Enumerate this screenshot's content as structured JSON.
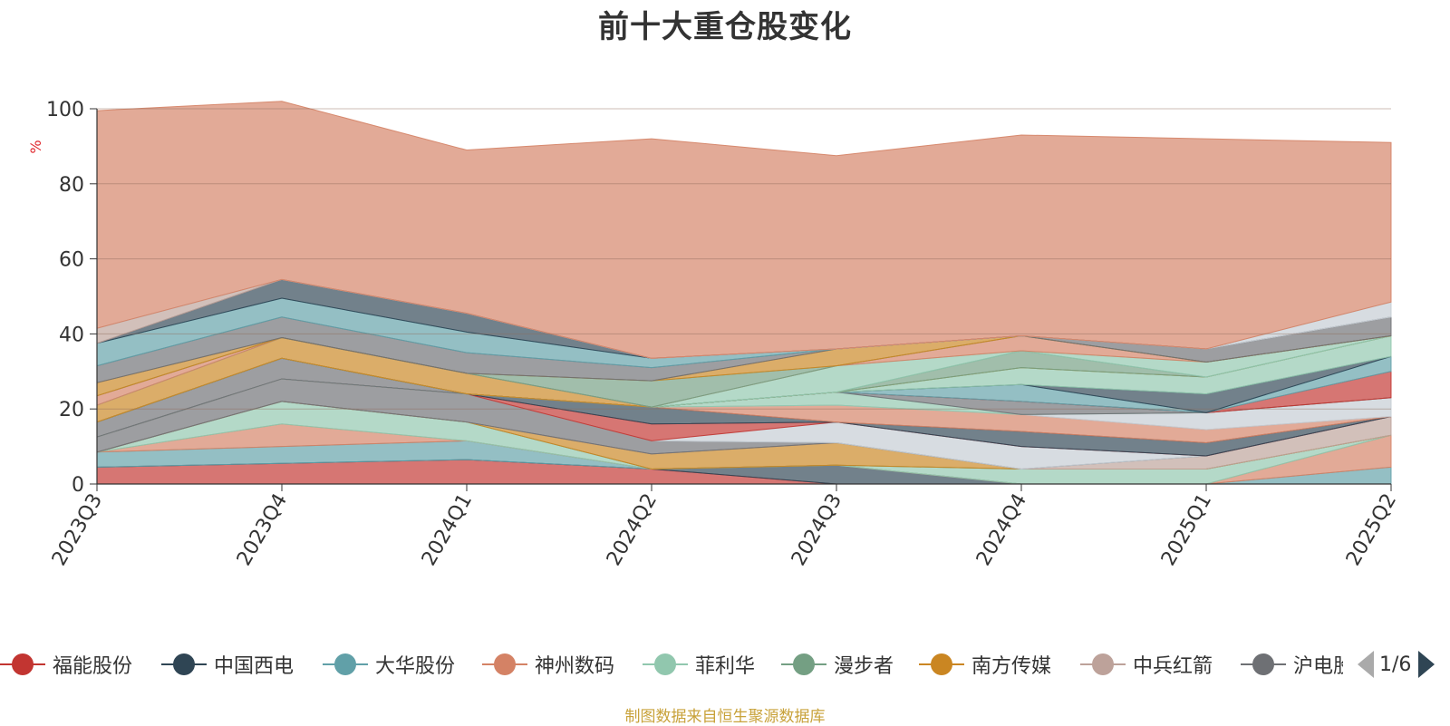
{
  "chart_data": {
    "type": "area",
    "stacked": true,
    "title": "前十大重仓股变化",
    "ylabel": "%",
    "ylim": [
      0,
      100
    ],
    "yticks": [
      0,
      20,
      40,
      60,
      80,
      100
    ],
    "grid": true,
    "legend_position": "bottom",
    "categories": [
      "2023Q3",
      "2023Q4",
      "2024Q1",
      "2024Q2",
      "2024Q3",
      "2024Q4",
      "2025Q1",
      "2025Q2"
    ],
    "series": [
      {
        "name": "福能股份",
        "color": "#c23531",
        "values": [
          4.5,
          5.5,
          6.5,
          4.0,
          0.0,
          0.0,
          0.0,
          0.0
        ]
      },
      {
        "name": "中国西电",
        "color": "#2f4554",
        "values": [
          0.0,
          0.0,
          0.0,
          0.0,
          5.0,
          0.0,
          0.0,
          0.0
        ]
      },
      {
        "name": "大华股份",
        "color": "#61a0a8",
        "values": [
          4.0,
          4.5,
          5.0,
          0.0,
          0.0,
          0.0,
          0.0,
          4.5
        ]
      },
      {
        "name": "神州数码",
        "color": "#d48265",
        "values": [
          0.0,
          6.0,
          0.0,
          0.0,
          0.0,
          0.0,
          0.0,
          8.5
        ]
      },
      {
        "name": "菲利华",
        "color": "#91c7ae",
        "values": [
          0.0,
          6.0,
          5.0,
          0.0,
          0.0,
          4.0,
          4.0,
          0.0
        ]
      },
      {
        "name": "漫步者",
        "color": "#749f83",
        "values": [
          0.0,
          0.0,
          0.0,
          0.0,
          0.0,
          0.0,
          0.0,
          0.0
        ]
      },
      {
        "name": "南方传媒",
        "color": "#ca8622",
        "values": [
          0.0,
          0.0,
          0.0,
          4.0,
          6.0,
          0.0,
          0.0,
          0.0
        ]
      },
      {
        "name": "中兵红箭",
        "color": "#bda29a",
        "values": [
          0.0,
          0.0,
          0.0,
          0.0,
          0.0,
          0.0,
          3.5,
          5.0
        ]
      },
      {
        "name": "沪电股份",
        "color": "#6e7074",
        "values": [
          4.0,
          6.0,
          7.5,
          3.5,
          0.0,
          0.0,
          0.0,
          0.0
        ]
      },
      {
        "name": "",
        "color": "#c4ccd3",
        "values": [
          0.0,
          0.0,
          0.0,
          0.0,
          5.5,
          6.0,
          0.0,
          0.0
        ]
      },
      {
        "name": "",
        "color": "#c23531",
        "values": [
          0.0,
          0.0,
          0.0,
          4.5,
          0.0,
          0.0,
          0.0,
          0.0
        ]
      },
      {
        "name": "",
        "color": "#2f4554",
        "values": [
          0.0,
          0.0,
          0.0,
          4.5,
          0.0,
          4.0,
          3.5,
          0.0
        ]
      },
      {
        "name": "",
        "color": "#d48265",
        "values": [
          0.0,
          0.0,
          0.0,
          0.0,
          4.5,
          4.5,
          3.5,
          0.0
        ]
      },
      {
        "name": "",
        "color": "#c4ccd3",
        "values": [
          0.0,
          0.0,
          0.0,
          0.0,
          0.0,
          0.0,
          4.5,
          5.0
        ]
      },
      {
        "name": "",
        "color": "#91c7ae",
        "values": [
          0.0,
          0.0,
          0.0,
          0.0,
          3.5,
          0.0,
          0.0,
          0.0
        ]
      },
      {
        "name": "",
        "color": "#6e7074",
        "values": [
          4.0,
          5.5,
          0.0,
          0.0,
          0.0,
          3.5,
          0.0,
          0.0
        ]
      },
      {
        "name": "",
        "color": "#c23531",
        "values": [
          0.0,
          0.0,
          0.0,
          0.0,
          0.0,
          0.0,
          0.0,
          7.0
        ]
      },
      {
        "name": "",
        "color": "#61a0a8",
        "values": [
          0.0,
          0.0,
          0.0,
          0.0,
          0.0,
          4.5,
          0.0,
          4.0
        ]
      },
      {
        "name": "",
        "color": "#2f4554",
        "values": [
          0.0,
          0.0,
          0.0,
          0.0,
          0.0,
          0.0,
          5.0,
          0.0
        ]
      },
      {
        "name": "",
        "color": "#91c7ae",
        "values": [
          0.0,
          0.0,
          0.0,
          0.0,
          0.0,
          4.5,
          4.5,
          5.5
        ]
      },
      {
        "name": "",
        "color": "#ca8622",
        "values": [
          4.5,
          5.5,
          5.5,
          0.0,
          0.0,
          0.0,
          0.0,
          0.0
        ]
      },
      {
        "name": "",
        "color": "#749f83",
        "values": [
          0.0,
          0.0,
          0.0,
          0.0,
          0.0,
          4.5,
          0.0,
          0.0
        ]
      },
      {
        "name": "",
        "color": "#91c7ae",
        "values": [
          0.0,
          0.0,
          0.0,
          0.0,
          7.0,
          0.0,
          4.0,
          0.0
        ]
      },
      {
        "name": "",
        "color": "#d48265",
        "values": [
          2.5,
          0.0,
          0.0,
          0.0,
          0.0,
          4.0,
          0.0,
          0.0
        ]
      },
      {
        "name": "",
        "color": "#749f83",
        "values": [
          0.0,
          0.0,
          0.0,
          7.0,
          0.0,
          0.0,
          0.0,
          0.0
        ]
      },
      {
        "name": "",
        "color": "#ca8622",
        "values": [
          3.5,
          0.0,
          0.0,
          0.0,
          4.5,
          0.0,
          0.0,
          0.0
        ]
      },
      {
        "name": "",
        "color": "#6e7074",
        "values": [
          4.5,
          5.5,
          5.5,
          3.5,
          0.0,
          0.0,
          3.5,
          5.0
        ]
      },
      {
        "name": "",
        "color": "#61a0a8",
        "values": [
          6.0,
          5.0,
          5.5,
          2.5,
          0.0,
          0.0,
          0.0,
          0.0
        ]
      },
      {
        "name": "",
        "color": "#2f4554",
        "values": [
          0.0,
          5.0,
          5.0,
          0.0,
          0.0,
          0.0,
          0.0,
          0.0
        ]
      },
      {
        "name": "",
        "color": "#bda29a",
        "values": [
          4.0,
          0.0,
          0.0,
          0.0,
          0.0,
          0.0,
          0.0,
          0.0
        ]
      },
      {
        "name": "",
        "color": "#c4ccd3",
        "values": [
          0.0,
          0.0,
          0.0,
          0.0,
          0.0,
          0.0,
          0.0,
          4.0
        ]
      },
      {
        "name": "",
        "color": "#d48265",
        "values": [
          58.0,
          47.5,
          43.5,
          58.5,
          51.5,
          53.5,
          56.0,
          42.5
        ]
      }
    ]
  },
  "legend": {
    "items": [
      {
        "label": "福能股份",
        "color": "#c23531"
      },
      {
        "label": "中国西电",
        "color": "#2f4554"
      },
      {
        "label": "大华股份",
        "color": "#61a0a8"
      },
      {
        "label": "神州数码",
        "color": "#d48265"
      },
      {
        "label": "菲利华",
        "color": "#91c7ae"
      },
      {
        "label": "漫步者",
        "color": "#749f83"
      },
      {
        "label": "南方传媒",
        "color": "#ca8622"
      },
      {
        "label": "中兵红箭",
        "color": "#bda29a"
      },
      {
        "label": "沪电股份",
        "color": "#6e7074"
      }
    ],
    "page_indicator": "1/6",
    "prev_icon": "triangle-left-icon",
    "next_icon": "triangle-right-icon"
  },
  "source_note": "制图数据来自恒生聚源数据库"
}
